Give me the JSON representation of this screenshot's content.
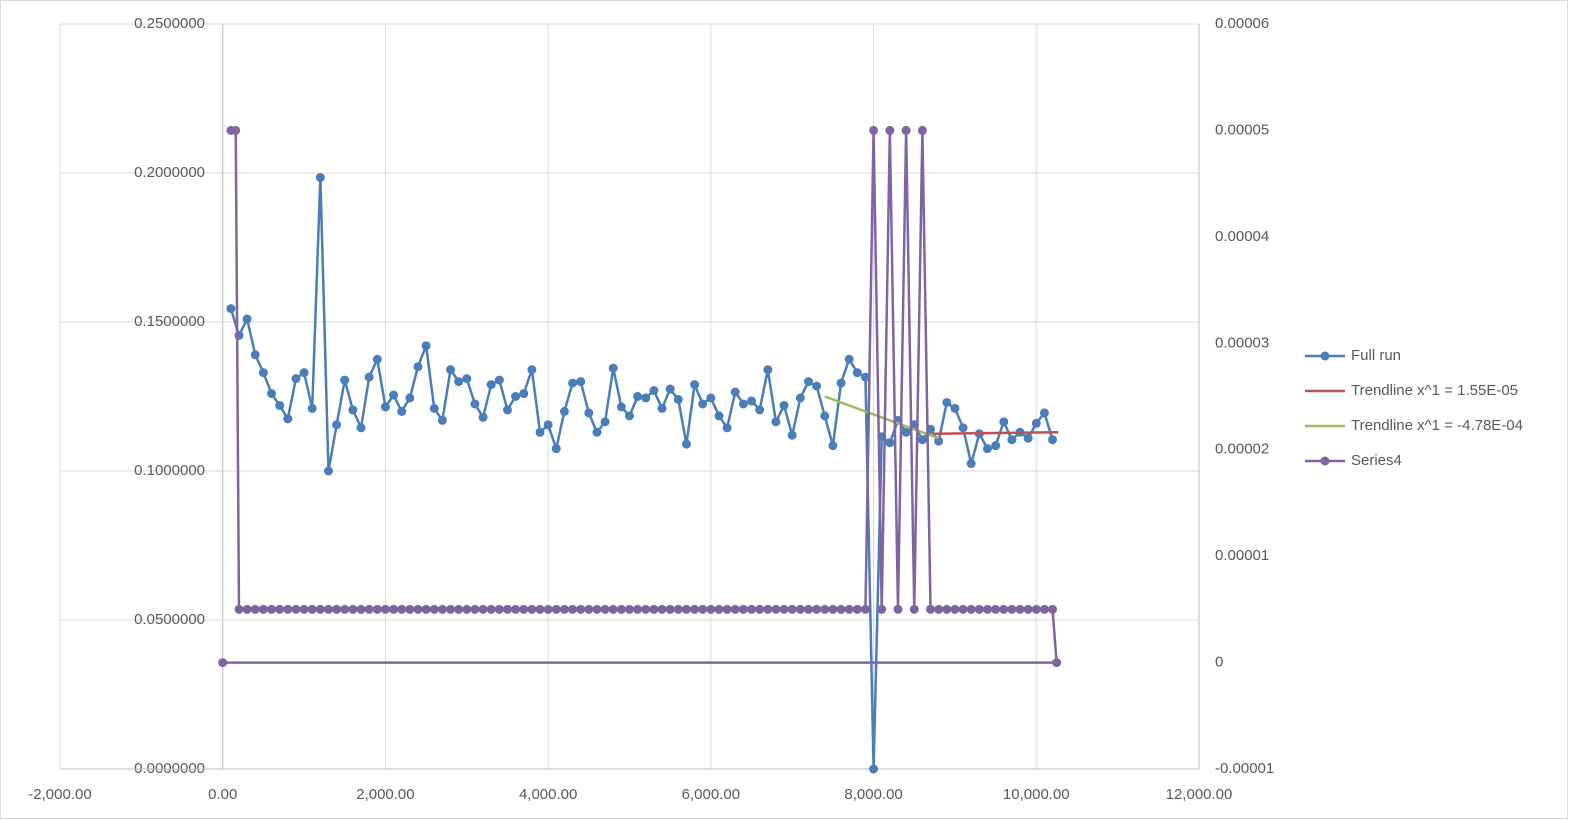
{
  "chart_data": {
    "type": "scatter-line",
    "xlim": [
      -2000,
      12000
    ],
    "xticks": [
      {
        "value": -2000,
        "label": "-2,000.00"
      },
      {
        "value": 0,
        "label": "0.00"
      },
      {
        "value": 2000,
        "label": "2,000.00"
      },
      {
        "value": 4000,
        "label": "4,000.00"
      },
      {
        "value": 6000,
        "label": "6,000.00"
      },
      {
        "value": 8000,
        "label": "8,000.00"
      },
      {
        "value": 10000,
        "label": "10,000.00"
      },
      {
        "value": 12000,
        "label": "12,000.00"
      }
    ],
    "ylim": [
      0,
      0.25
    ],
    "yticks": [
      {
        "value": 0,
        "label": "0.0000000"
      },
      {
        "value": 0.05,
        "label": "0.0500000"
      },
      {
        "value": 0.1,
        "label": "0.1000000"
      },
      {
        "value": 0.15,
        "label": "0.1500000"
      },
      {
        "value": 0.2,
        "label": "0.2000000"
      },
      {
        "value": 0.25,
        "label": "0.2500000"
      }
    ],
    "y2lim": [
      -1e-05,
      6e-05
    ],
    "y2ticks": [
      -1e-05,
      0,
      1e-05,
      2e-05,
      3e-05,
      4e-05,
      5e-05,
      6e-05
    ],
    "grid": true,
    "legend": "right",
    "series": [
      {
        "name": "Full run",
        "color": "#4a7ebb",
        "markers": true,
        "x": [
          100,
          200,
          300,
          400,
          500,
          600,
          700,
          800,
          900,
          1000,
          1100,
          1200,
          1300,
          1400,
          1500,
          1600,
          1700,
          1800,
          1900,
          2000,
          2100,
          2200,
          2300,
          2400,
          2500,
          2600,
          2700,
          2800,
          2900,
          3000,
          3100,
          3200,
          3300,
          3400,
          3500,
          3600,
          3700,
          3800,
          3900,
          4000,
          4100,
          4200,
          4300,
          4400,
          4500,
          4600,
          4700,
          4800,
          4900,
          5000,
          5100,
          5200,
          5300,
          5400,
          5500,
          5600,
          5700,
          5800,
          5900,
          6000,
          6100,
          6200,
          6300,
          6400,
          6500,
          6600,
          6700,
          6800,
          6900,
          7000,
          7100,
          7200,
          7300,
          7400,
          7500,
          7600,
          7700,
          7800,
          7900,
          8000,
          8100,
          8200,
          8300,
          8400,
          8500,
          8600,
          8700,
          8800,
          8900,
          9000,
          9100,
          9200,
          9300,
          9400,
          9500,
          9600,
          9700,
          9800,
          9900,
          10000,
          10100,
          10200
        ],
        "values": [
          0.1545,
          0.1455,
          0.151,
          0.139,
          0.133,
          0.126,
          0.122,
          0.1175,
          0.131,
          0.133,
          0.121,
          0.1985,
          0.1,
          0.1155,
          0.1305,
          0.1205,
          0.1145,
          0.1315,
          0.1375,
          0.1215,
          0.1255,
          0.12,
          0.1245,
          0.135,
          0.142,
          0.121,
          0.117,
          0.134,
          0.13,
          0.131,
          0.1225,
          0.118,
          0.129,
          0.1305,
          0.1205,
          0.125,
          0.126,
          0.134,
          0.113,
          0.1155,
          0.1075,
          0.12,
          0.1295,
          0.13,
          0.1195,
          0.113,
          0.1165,
          0.1345,
          0.1215,
          0.1185,
          0.125,
          0.1245,
          0.127,
          0.121,
          0.1275,
          0.124,
          0.109,
          0.129,
          0.1225,
          0.1245,
          0.1185,
          0.1145,
          0.1265,
          0.1225,
          0.1235,
          0.1205,
          0.134,
          0.1165,
          0.122,
          0.112,
          0.1245,
          0.13,
          0.1285,
          0.1185,
          0.1085,
          0.1295,
          0.1375,
          0.133,
          0.1315,
          0,
          0.1115,
          0.1095,
          0.117,
          0.113,
          0.1155,
          0.1105,
          0.114,
          0.11,
          0.123,
          0.121,
          0.1145,
          0.1025,
          0.1125,
          0.1075,
          0.1085,
          0.1165,
          0.1105,
          0.113,
          0.111,
          0.116,
          0.1195,
          0.1105
        ]
      },
      {
        "name": "Trendline x^1 = 1.55E-05",
        "color": "#c0504d",
        "markers": false,
        "x": [
          8750,
          10270
        ],
        "values": [
          0.1125,
          0.113
        ]
      },
      {
        "name": "Trendline x^1 = -4.78E-04",
        "color": "#9bbb59",
        "markers": false,
        "x": [
          7400,
          8800
        ],
        "values": [
          0.125,
          0.111
        ]
      },
      {
        "name": "Series4",
        "color": "#8064a2",
        "markers": true,
        "axis": "y2",
        "x": [
          100,
          160,
          200,
          300,
          400,
          500,
          600,
          700,
          800,
          900,
          1000,
          1100,
          1200,
          1300,
          1400,
          1500,
          1600,
          1700,
          1800,
          1900,
          2000,
          2100,
          2200,
          2300,
          2400,
          2500,
          2600,
          2700,
          2800,
          2900,
          3000,
          3100,
          3200,
          3300,
          3400,
          3500,
          3600,
          3700,
          3800,
          3900,
          4000,
          4100,
          4200,
          4300,
          4400,
          4500,
          4600,
          4700,
          4800,
          4900,
          5000,
          5100,
          5200,
          5300,
          5400,
          5500,
          5600,
          5700,
          5800,
          5900,
          6000,
          6100,
          6200,
          6300,
          6400,
          6500,
          6600,
          6700,
          6800,
          6900,
          7000,
          7100,
          7200,
          7300,
          7400,
          7500,
          7600,
          7700,
          7800,
          7900,
          8000,
          8100,
          8200,
          8300,
          8400,
          8500,
          8600,
          8700,
          8800,
          8900,
          9000,
          9100,
          9200,
          9300,
          9400,
          9500,
          9600,
          9700,
          9800,
          9900,
          10000,
          10100,
          10200,
          10250,
          0
        ],
        "values": [
          5e-05,
          5e-05,
          5e-06,
          5e-06,
          5e-06,
          5e-06,
          5e-06,
          5e-06,
          5e-06,
          5e-06,
          5e-06,
          5e-06,
          5e-06,
          5e-06,
          5e-06,
          5e-06,
          5e-06,
          5e-06,
          5e-06,
          5e-06,
          5e-06,
          5e-06,
          5e-06,
          5e-06,
          5e-06,
          5e-06,
          5e-06,
          5e-06,
          5e-06,
          5e-06,
          5e-06,
          5e-06,
          5e-06,
          5e-06,
          5e-06,
          5e-06,
          5e-06,
          5e-06,
          5e-06,
          5e-06,
          5e-06,
          5e-06,
          5e-06,
          5e-06,
          5e-06,
          5e-06,
          5e-06,
          5e-06,
          5e-06,
          5e-06,
          5e-06,
          5e-06,
          5e-06,
          5e-06,
          5e-06,
          5e-06,
          5e-06,
          5e-06,
          5e-06,
          5e-06,
          5e-06,
          5e-06,
          5e-06,
          5e-06,
          5e-06,
          5e-06,
          5e-06,
          5e-06,
          5e-06,
          5e-06,
          5e-06,
          5e-06,
          5e-06,
          5e-06,
          5e-06,
          5e-06,
          5e-06,
          5e-06,
          5e-06,
          5e-06,
          5e-05,
          5e-06,
          5e-05,
          5e-06,
          5e-05,
          5e-06,
          5e-05,
          5e-06,
          5e-06,
          5e-06,
          5e-06,
          5e-06,
          5e-06,
          5e-06,
          5e-06,
          5e-06,
          5e-06,
          5e-06,
          5e-06,
          5e-06,
          5e-06,
          5e-06,
          5e-06,
          0,
          0
        ]
      }
    ]
  }
}
